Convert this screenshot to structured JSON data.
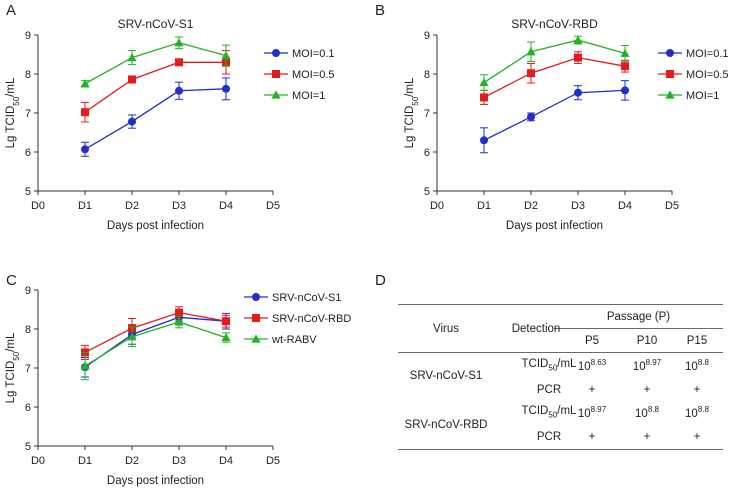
{
  "panels": [
    "A",
    "B",
    "C",
    "D"
  ],
  "chart_data": [
    {
      "id": "A",
      "type": "line",
      "title": "SRV-nCoV-S1",
      "categories": [
        "D0",
        "D1",
        "D2",
        "D3",
        "D4",
        "D5"
      ],
      "xlabel": "Days post infection",
      "ylabel_main": "Lg TCID",
      "ylabel_sub": "50",
      "ylabel_tail": "/mL",
      "ylim": [
        5,
        9
      ],
      "yticks": [
        "5",
        "6",
        "7",
        "8",
        "9"
      ],
      "series": [
        {
          "name": "MOI=0.1",
          "color": "#1f2fc8",
          "marker": "circle",
          "x": [
            1,
            2,
            3,
            4
          ],
          "values": [
            6.07,
            6.78,
            7.57,
            7.62
          ],
          "err": [
            0.18,
            0.17,
            0.22,
            0.28
          ]
        },
        {
          "name": "MOI=0.5",
          "color": "#e41a1c",
          "marker": "square",
          "x": [
            1,
            2,
            3,
            4
          ],
          "values": [
            7.02,
            7.86,
            8.3,
            8.3
          ],
          "err": [
            0.25,
            0.08,
            0.05,
            0.3
          ]
        },
        {
          "name": "MOI=1",
          "color": "#22b422",
          "marker": "triangle",
          "x": [
            1,
            2,
            3,
            4
          ],
          "values": [
            7.75,
            8.42,
            8.8,
            8.47
          ],
          "err": [
            0.08,
            0.18,
            0.15,
            0.27
          ]
        }
      ]
    },
    {
      "id": "B",
      "type": "line",
      "title": "SRV-nCoV-RBD",
      "categories": [
        "D0",
        "D1",
        "D2",
        "D3",
        "D4",
        "D5"
      ],
      "xlabel": "Days post infection",
      "ylabel_main": "Lg TCID",
      "ylabel_sub": "50",
      "ylabel_tail": "/mL",
      "ylim": [
        5,
        9
      ],
      "yticks": [
        "5",
        "6",
        "7",
        "8",
        "9"
      ],
      "series": [
        {
          "name": "MOI=0.1",
          "color": "#1f2fc8",
          "marker": "circle",
          "x": [
            1,
            2,
            3,
            4
          ],
          "values": [
            6.3,
            6.9,
            7.52,
            7.58
          ],
          "err": [
            0.32,
            0.1,
            0.18,
            0.25
          ]
        },
        {
          "name": "MOI=0.5",
          "color": "#e41a1c",
          "marker": "square",
          "x": [
            1,
            2,
            3,
            4
          ],
          "values": [
            7.4,
            8.02,
            8.42,
            8.2
          ],
          "err": [
            0.18,
            0.25,
            0.15,
            0.15
          ]
        },
        {
          "name": "MOI=1",
          "color": "#22b422",
          "marker": "triangle",
          "x": [
            1,
            2,
            3,
            4
          ],
          "values": [
            7.78,
            8.57,
            8.87,
            8.53
          ],
          "err": [
            0.2,
            0.25,
            0.1,
            0.2
          ]
        }
      ]
    },
    {
      "id": "C",
      "type": "line",
      "title": "",
      "categories": [
        "D0",
        "D1",
        "D2",
        "D3",
        "D4",
        "D5"
      ],
      "xlabel": "Days post infection",
      "ylabel_main": "Lg TCID",
      "ylabel_sub": "50",
      "ylabel_tail": "/mL",
      "ylim": [
        5,
        9
      ],
      "yticks": [
        "5",
        "6",
        "7",
        "8",
        "9"
      ],
      "series": [
        {
          "name": "SRV-nCoV-S1",
          "color": "#1f2fc8",
          "marker": "circle",
          "x": [
            1,
            2,
            3,
            4
          ],
          "values": [
            7.02,
            7.86,
            8.3,
            8.2
          ],
          "err": [
            0.25,
            0.25,
            0.1,
            0.2
          ]
        },
        {
          "name": "SRV-nCoV-RBD",
          "color": "#e41a1c",
          "marker": "square",
          "x": [
            1,
            2,
            3,
            4
          ],
          "values": [
            7.4,
            8.02,
            8.42,
            8.2
          ],
          "err": [
            0.18,
            0.25,
            0.15,
            0.15
          ]
        },
        {
          "name": "wt-RABV",
          "color": "#22b422",
          "marker": "triangle",
          "x": [
            1,
            2,
            3,
            4
          ],
          "values": [
            7.05,
            7.8,
            8.18,
            7.78
          ],
          "err": [
            0.35,
            0.25,
            0.15,
            0.12
          ]
        }
      ]
    },
    {
      "id": "D",
      "type": "table",
      "headers": {
        "virus": "Virus",
        "detection": "Detection",
        "passage": "Passage (P)",
        "p5": "P5",
        "p10": "P10",
        "p15": "P15"
      },
      "detection_tcid_main": "TCID",
      "detection_tcid_sub": "50",
      "detection_tcid_tail": "/mL",
      "detection_pcr": "PCR",
      "rows": [
        {
          "virus": "SRV-nCoV-S1",
          "tcid": [
            {
              "base": "10",
              "exp": "8.63"
            },
            {
              "base": "10",
              "exp": "8.97"
            },
            {
              "base": "10",
              "exp": "8.8"
            }
          ],
          "pcr": [
            "+",
            "+",
            "+"
          ]
        },
        {
          "virus": "SRV-nCoV-RBD",
          "tcid": [
            {
              "base": "10",
              "exp": "8.97"
            },
            {
              "base": "10",
              "exp": "8.8"
            },
            {
              "base": "10",
              "exp": "8.8"
            }
          ],
          "pcr": [
            "+",
            "+",
            "+"
          ]
        }
      ]
    }
  ]
}
